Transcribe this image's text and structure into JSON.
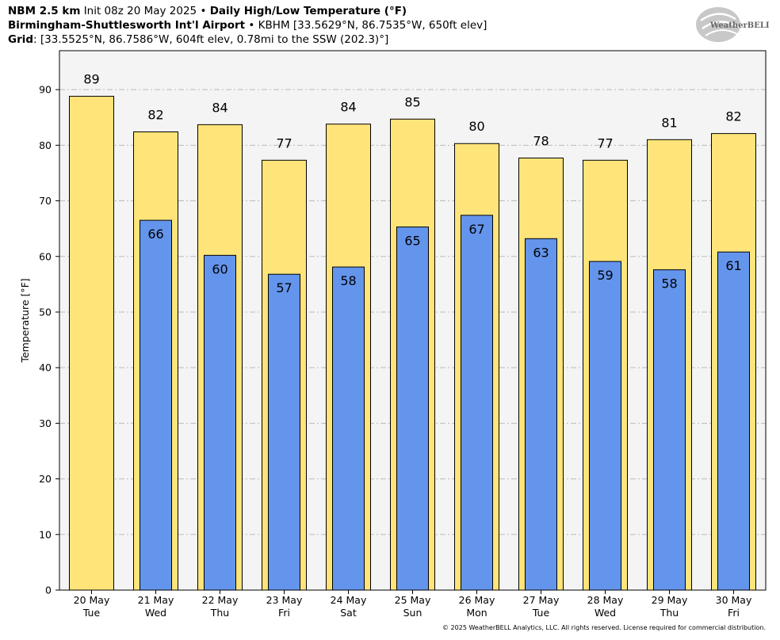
{
  "header": {
    "model": "NBM 2.5 km",
    "init": "Init 08z 20 May 2025",
    "bullet": "•",
    "product": "Daily High/Low Temperature (°F)",
    "station_name": "Birmingham-Shuttlesworth Int'l Airport",
    "station_info": "KBHM [33.5629°N, 86.7535°W, 650ft elev]",
    "grid_label": "Grid",
    "grid_info": ": [33.5525°N, 86.7586°W, 604ft elev, 0.78mi to the SSW (202.3)°]"
  },
  "logo_text": "WeatherBELL",
  "copyright": "© 2025 WeatherBELL Analytics, LLC. All rights reserved. License required for commercial distribution.",
  "colors": {
    "high_bar": "#FFE47A",
    "low_bar": "#6495ED",
    "plot_bg": "#F4F4F4",
    "grid": "#BBBBBB"
  },
  "chart_data": {
    "type": "bar",
    "title": "Daily High/Low Temperature (°F)",
    "ylabel": "Temperature [°F]",
    "xlabel": "",
    "ylim": [
      0,
      97
    ],
    "yticks": [
      0,
      10,
      20,
      30,
      40,
      50,
      60,
      70,
      80,
      90
    ],
    "grid": true,
    "categories": [
      {
        "date": "20 May",
        "day": "Tue"
      },
      {
        "date": "21 May",
        "day": "Wed"
      },
      {
        "date": "22 May",
        "day": "Thu"
      },
      {
        "date": "23 May",
        "day": "Fri"
      },
      {
        "date": "24 May",
        "day": "Sat"
      },
      {
        "date": "25 May",
        "day": "Sun"
      },
      {
        "date": "26 May",
        "day": "Mon"
      },
      {
        "date": "27 May",
        "day": "Tue"
      },
      {
        "date": "28 May",
        "day": "Wed"
      },
      {
        "date": "29 May",
        "day": "Thu"
      },
      {
        "date": "30 May",
        "day": "Fri"
      }
    ],
    "series": [
      {
        "name": "High",
        "values": [
          88.8,
          82.4,
          83.7,
          77.3,
          83.8,
          84.7,
          80.3,
          77.7,
          77.3,
          81.0,
          82.1
        ],
        "labels": [
          "89",
          "82",
          "84",
          "77",
          "84",
          "85",
          "80",
          "78",
          "77",
          "81",
          "82"
        ]
      },
      {
        "name": "Low",
        "values": [
          null,
          66.5,
          60.2,
          56.8,
          58.1,
          65.3,
          67.4,
          63.2,
          59.1,
          57.6,
          60.8
        ],
        "labels": [
          null,
          "66",
          "60",
          "57",
          "58",
          "65",
          "67",
          "63",
          "59",
          "58",
          "61"
        ]
      }
    ]
  }
}
